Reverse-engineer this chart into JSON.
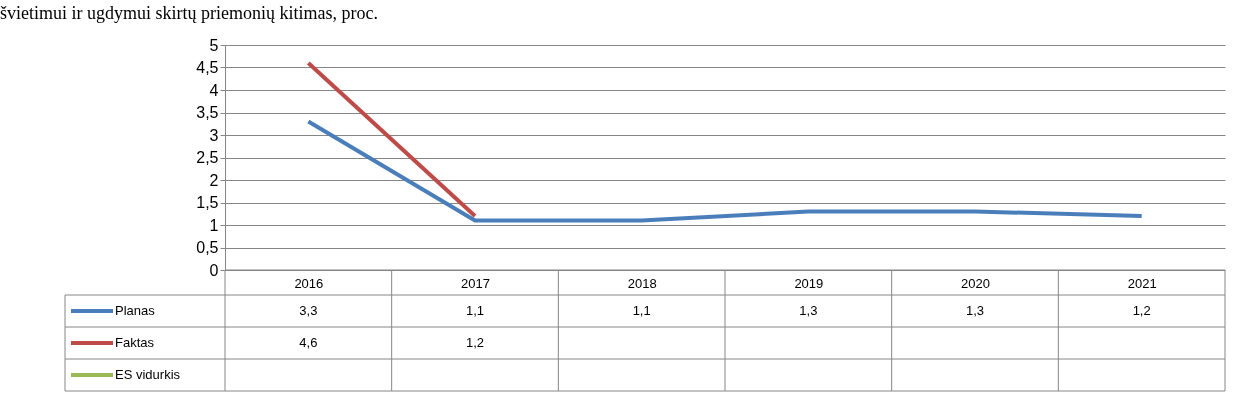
{
  "chart_data": {
    "type": "line",
    "title": "švietimui ir ugdymui skirtų priemonių kitimas, proc.",
    "categories": [
      "2016",
      "2017",
      "2018",
      "2019",
      "2020",
      "2021"
    ],
    "series": [
      {
        "name": "Planas",
        "color": "#4a7ebb",
        "values": [
          3.3,
          1.1,
          1.1,
          1.3,
          1.3,
          1.2
        ],
        "value_labels": [
          "3,3",
          "1,1",
          "1,1",
          "1,3",
          "1,3",
          "1,2"
        ]
      },
      {
        "name": "Faktas",
        "color": "#be4b48",
        "values": [
          4.6,
          1.2,
          null,
          null,
          null,
          null
        ],
        "value_labels": [
          "4,6",
          "1,2",
          null,
          null,
          null,
          null
        ]
      },
      {
        "name": "ES vidurkis",
        "color": "#98b954",
        "values": [
          null,
          null,
          null,
          null,
          null,
          null
        ],
        "value_labels": [
          null,
          null,
          null,
          null,
          null,
          null
        ]
      }
    ],
    "ylim": [
      0,
      5
    ],
    "yticks": [
      0,
      {
        "value": 0.5,
        "label": "0,5"
      },
      1,
      {
        "value": 1.5,
        "label": "1,5"
      },
      2,
      {
        "value": 2.5,
        "label": "2,5"
      },
      3,
      {
        "value": 3.5,
        "label": "3,5"
      },
      4,
      {
        "value": 4.5,
        "label": "4,5"
      },
      5
    ],
    "grid": "y",
    "legend": "bottom"
  }
}
